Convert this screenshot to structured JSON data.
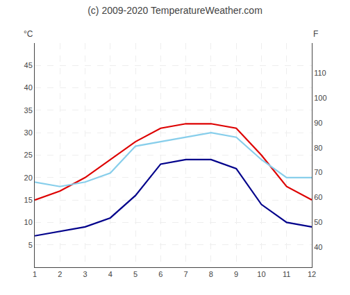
{
  "chart_data": {
    "type": "line",
    "title": "(c) 2009-2020 TemperatureWeather.com",
    "ylabel": "°C",
    "y2label": "F",
    "x": [
      1,
      2,
      3,
      4,
      5,
      6,
      7,
      8,
      9,
      10,
      11,
      12
    ],
    "xlim": [
      1,
      12
    ],
    "xticks": [
      1,
      2,
      3,
      4,
      5,
      6,
      7,
      8,
      9,
      10,
      11,
      12
    ],
    "ylim": [
      0,
      50
    ],
    "yticks": [
      5,
      10,
      15,
      20,
      25,
      30,
      35,
      40,
      45
    ],
    "y2lim": [
      32,
      122
    ],
    "y2ticks": [
      40,
      50,
      60,
      70,
      80,
      90,
      100,
      110
    ],
    "grid": true,
    "series": [
      {
        "color": "#dd0000",
        "values": [
          15,
          17,
          20,
          24,
          28,
          31,
          32,
          32,
          31,
          25,
          18,
          15
        ]
      },
      {
        "color": "#87ceeb",
        "values": [
          19,
          18,
          19,
          21,
          27,
          28,
          29,
          30,
          29,
          24,
          20,
          20
        ]
      },
      {
        "color": "#00008b",
        "values": [
          7,
          8,
          9,
          11,
          16,
          23,
          24,
          24,
          22,
          14,
          10,
          9
        ]
      }
    ]
  }
}
